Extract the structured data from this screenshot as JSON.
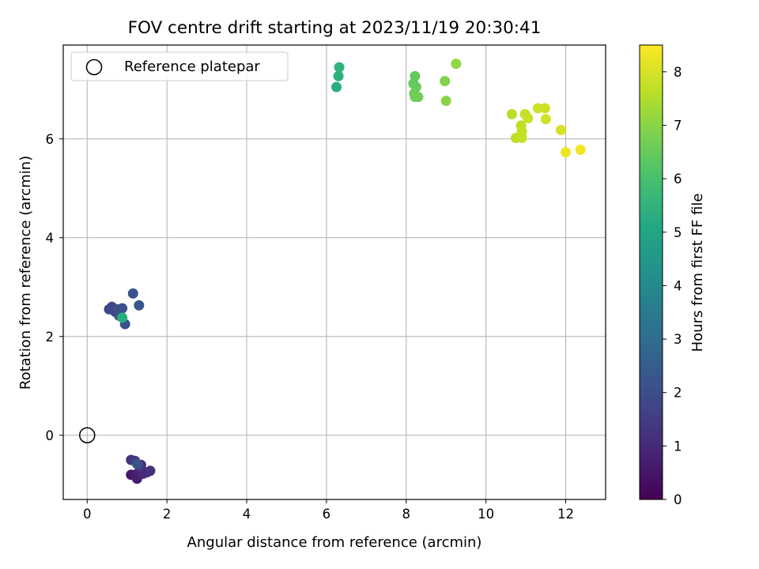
{
  "chart_data": {
    "type": "scatter",
    "title": "FOV centre drift starting at 2023/11/19 20:30:41",
    "xlabel": "Angular distance from reference (arcmin)",
    "ylabel": "Rotation from reference (arcmin)",
    "xlim": [
      -0.6,
      13.0
    ],
    "ylim": [
      -1.3,
      7.9
    ],
    "xticks": [
      0,
      2,
      4,
      6,
      8,
      10,
      12
    ],
    "yticks": [
      0,
      2,
      4,
      6
    ],
    "grid": true,
    "legend": {
      "position": "top-left",
      "entries": [
        {
          "label": "Reference platepar",
          "marker": "open-circle"
        }
      ]
    },
    "reference_point": {
      "x": 0,
      "y": 0,
      "marker": "open-circle",
      "color": "#000000"
    },
    "colorbar": {
      "label": "Hours from first FF file",
      "colormap": "viridis",
      "range": [
        0,
        8.5
      ],
      "ticks": [
        0,
        1,
        2,
        3,
        4,
        5,
        6,
        7,
        8
      ]
    },
    "points": [
      {
        "x": 1.1,
        "y": -0.8,
        "c": 0.5
      },
      {
        "x": 1.2,
        "y": -0.8,
        "c": 0.6
      },
      {
        "x": 1.25,
        "y": -0.88,
        "c": 0.7
      },
      {
        "x": 1.3,
        "y": -0.75,
        "c": 0.8
      },
      {
        "x": 1.35,
        "y": -0.6,
        "c": 0.9
      },
      {
        "x": 1.4,
        "y": -0.78,
        "c": 1.0
      },
      {
        "x": 1.5,
        "y": -0.75,
        "c": 1.1
      },
      {
        "x": 1.58,
        "y": -0.72,
        "c": 1.2
      },
      {
        "x": 1.1,
        "y": -0.5,
        "c": 1.3
      },
      {
        "x": 1.2,
        "y": -0.52,
        "c": 1.4
      },
      {
        "x": 1.3,
        "y": -0.62,
        "c": 1.5
      },
      {
        "x": 1.25,
        "y": -0.58,
        "c": 2.2
      },
      {
        "x": 0.55,
        "y": 2.55,
        "c": 1.7
      },
      {
        "x": 0.62,
        "y": 2.6,
        "c": 1.8
      },
      {
        "x": 0.7,
        "y": 2.5,
        "c": 1.9
      },
      {
        "x": 0.78,
        "y": 2.55,
        "c": 2.0
      },
      {
        "x": 0.8,
        "y": 2.42,
        "c": 2.05
      },
      {
        "x": 0.88,
        "y": 2.57,
        "c": 2.1
      },
      {
        "x": 0.95,
        "y": 2.25,
        "c": 2.15
      },
      {
        "x": 1.15,
        "y": 2.87,
        "c": 2.2
      },
      {
        "x": 1.3,
        "y": 2.63,
        "c": 2.25
      },
      {
        "x": 0.88,
        "y": 2.38,
        "c": 5.3
      },
      {
        "x": 6.25,
        "y": 7.05,
        "c": 5.3
      },
      {
        "x": 6.3,
        "y": 7.27,
        "c": 5.4
      },
      {
        "x": 6.32,
        "y": 7.45,
        "c": 5.5
      },
      {
        "x": 8.18,
        "y": 7.12,
        "c": 6.4
      },
      {
        "x": 8.22,
        "y": 7.27,
        "c": 6.45
      },
      {
        "x": 8.25,
        "y": 7.05,
        "c": 6.5
      },
      {
        "x": 8.2,
        "y": 6.92,
        "c": 6.55
      },
      {
        "x": 8.22,
        "y": 6.85,
        "c": 6.6
      },
      {
        "x": 8.3,
        "y": 6.85,
        "c": 6.65
      },
      {
        "x": 8.97,
        "y": 7.17,
        "c": 6.9
      },
      {
        "x": 9.0,
        "y": 6.77,
        "c": 7.0
      },
      {
        "x": 9.25,
        "y": 7.52,
        "c": 7.1
      },
      {
        "x": 10.65,
        "y": 6.5,
        "c": 7.6
      },
      {
        "x": 10.75,
        "y": 6.02,
        "c": 7.65
      },
      {
        "x": 10.88,
        "y": 6.27,
        "c": 7.7
      },
      {
        "x": 10.9,
        "y": 6.15,
        "c": 7.72
      },
      {
        "x": 10.9,
        "y": 6.02,
        "c": 7.75
      },
      {
        "x": 10.98,
        "y": 6.5,
        "c": 7.78
      },
      {
        "x": 11.05,
        "y": 6.42,
        "c": 7.8
      },
      {
        "x": 11.3,
        "y": 6.62,
        "c": 7.82
      },
      {
        "x": 11.48,
        "y": 6.62,
        "c": 7.85
      },
      {
        "x": 11.5,
        "y": 6.4,
        "c": 7.9
      },
      {
        "x": 11.88,
        "y": 6.18,
        "c": 8.0
      },
      {
        "x": 12.0,
        "y": 5.73,
        "c": 8.3
      },
      {
        "x": 12.37,
        "y": 5.78,
        "c": 8.4
      }
    ]
  }
}
